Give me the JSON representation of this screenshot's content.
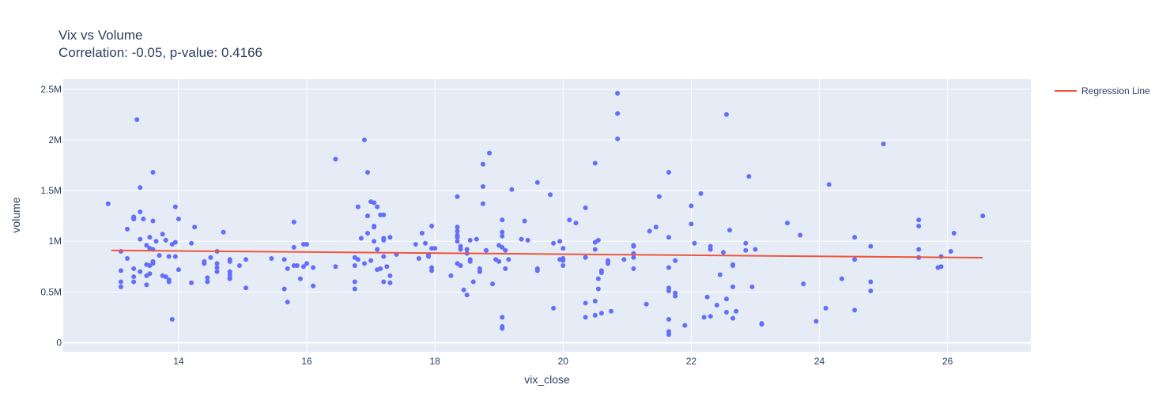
{
  "chart_data": {
    "type": "scatter",
    "title": "Vix vs Volume",
    "subtitle": "Correlation: -0.05, p-value: 0.4166",
    "xlabel": "vix_close",
    "ylabel": "volume",
    "xlim": [
      12.2,
      27.3
    ],
    "ylim": [
      -90000,
      2600000
    ],
    "x_ticks": [
      14,
      16,
      18,
      20,
      22,
      24,
      26
    ],
    "x_tick_labels": [
      "14",
      "16",
      "18",
      "20",
      "22",
      "24",
      "26"
    ],
    "y_ticks": [
      0,
      500000,
      1000000,
      1500000,
      2000000,
      2500000
    ],
    "y_tick_labels": [
      "0",
      "0.5M",
      "1M",
      "1.5M",
      "2M",
      "2.5M"
    ],
    "grid": true,
    "legend_position": "top-right",
    "marker_color": "#636efa",
    "line_color": "#ef553b",
    "regression_line": {
      "name": "Regression Line",
      "x": [
        12.95,
        26.55
      ],
      "y": [
        910000,
        838000
      ]
    },
    "points": [
      [
        12.9,
        1370000
      ],
      [
        13.1,
        900000
      ],
      [
        13.1,
        710000
      ],
      [
        13.1,
        600000
      ],
      [
        13.1,
        550000
      ],
      [
        13.2,
        1120000
      ],
      [
        13.2,
        830000
      ],
      [
        13.3,
        1220000
      ],
      [
        13.3,
        1230000
      ],
      [
        13.3,
        1240000
      ],
      [
        13.3,
        1220000
      ],
      [
        13.3,
        730000
      ],
      [
        13.3,
        650000
      ],
      [
        13.3,
        600000
      ],
      [
        13.35,
        2200000
      ],
      [
        13.4,
        1530000
      ],
      [
        13.4,
        1290000
      ],
      [
        13.4,
        1020000
      ],
      [
        13.4,
        700000
      ],
      [
        13.45,
        1220000
      ],
      [
        13.5,
        960000
      ],
      [
        13.5,
        770000
      ],
      [
        13.5,
        660000
      ],
      [
        13.5,
        570000
      ],
      [
        13.55,
        1040000
      ],
      [
        13.55,
        930000
      ],
      [
        13.55,
        760000
      ],
      [
        13.55,
        680000
      ],
      [
        13.6,
        1680000
      ],
      [
        13.6,
        1200000
      ],
      [
        13.6,
        920000
      ],
      [
        13.6,
        800000
      ],
      [
        13.6,
        780000
      ],
      [
        13.65,
        1000000
      ],
      [
        13.7,
        860000
      ],
      [
        13.75,
        1070000
      ],
      [
        13.75,
        660000
      ],
      [
        13.8,
        650000
      ],
      [
        13.8,
        1010000
      ],
      [
        13.85,
        850000
      ],
      [
        13.85,
        620000
      ],
      [
        13.85,
        600000
      ],
      [
        13.9,
        970000
      ],
      [
        13.9,
        230000
      ],
      [
        13.95,
        1340000
      ],
      [
        13.95,
        990000
      ],
      [
        13.95,
        850000
      ],
      [
        14.0,
        1220000
      ],
      [
        14.0,
        720000
      ],
      [
        14.2,
        980000
      ],
      [
        14.2,
        590000
      ],
      [
        14.25,
        1140000
      ],
      [
        14.4,
        800000
      ],
      [
        14.4,
        780000
      ],
      [
        14.45,
        640000
      ],
      [
        14.45,
        600000
      ],
      [
        14.5,
        840000
      ],
      [
        14.6,
        900000
      ],
      [
        14.6,
        780000
      ],
      [
        14.6,
        740000
      ],
      [
        14.6,
        700000
      ],
      [
        14.7,
        1090000
      ],
      [
        14.8,
        820000
      ],
      [
        14.8,
        800000
      ],
      [
        14.8,
        700000
      ],
      [
        14.8,
        670000
      ],
      [
        14.8,
        640000
      ],
      [
        14.8,
        630000
      ],
      [
        14.95,
        760000
      ],
      [
        15.05,
        540000
      ],
      [
        15.05,
        820000
      ],
      [
        15.45,
        830000
      ],
      [
        15.65,
        820000
      ],
      [
        15.65,
        530000
      ],
      [
        15.7,
        730000
      ],
      [
        15.7,
        400000
      ],
      [
        15.8,
        1190000
      ],
      [
        15.8,
        940000
      ],
      [
        15.8,
        760000
      ],
      [
        15.85,
        760000
      ],
      [
        15.9,
        630000
      ],
      [
        15.95,
        970000
      ],
      [
        15.95,
        750000
      ],
      [
        16.0,
        970000
      ],
      [
        16.0,
        780000
      ],
      [
        16.1,
        740000
      ],
      [
        16.1,
        560000
      ],
      [
        16.45,
        1810000
      ],
      [
        16.45,
        750000
      ],
      [
        16.75,
        840000
      ],
      [
        16.75,
        760000
      ],
      [
        16.75,
        600000
      ],
      [
        16.75,
        530000
      ],
      [
        16.8,
        1340000
      ],
      [
        16.8,
        820000
      ],
      [
        16.85,
        1030000
      ],
      [
        16.9,
        2000000
      ],
      [
        16.9,
        780000
      ],
      [
        16.95,
        1250000
      ],
      [
        16.95,
        1080000
      ],
      [
        16.95,
        1680000
      ],
      [
        17.0,
        1390000
      ],
      [
        17.0,
        810000
      ],
      [
        17.05,
        1380000
      ],
      [
        17.05,
        1150000
      ],
      [
        17.05,
        1140000
      ],
      [
        17.05,
        1000000
      ],
      [
        17.1,
        1340000
      ],
      [
        17.1,
        920000
      ],
      [
        17.1,
        720000
      ],
      [
        17.15,
        1260000
      ],
      [
        17.15,
        730000
      ],
      [
        17.2,
        1260000
      ],
      [
        17.2,
        1030000
      ],
      [
        17.2,
        1010000
      ],
      [
        17.2,
        850000
      ],
      [
        17.2,
        600000
      ],
      [
        17.25,
        750000
      ],
      [
        17.3,
        1040000
      ],
      [
        17.3,
        660000
      ],
      [
        17.3,
        590000
      ],
      [
        17.4,
        870000
      ],
      [
        17.7,
        970000
      ],
      [
        17.75,
        830000
      ],
      [
        17.8,
        1080000
      ],
      [
        17.85,
        980000
      ],
      [
        17.9,
        870000
      ],
      [
        17.9,
        850000
      ],
      [
        17.95,
        1150000
      ],
      [
        17.95,
        930000
      ],
      [
        17.95,
        740000
      ],
      [
        17.95,
        710000
      ],
      [
        18.0,
        930000
      ],
      [
        18.25,
        660000
      ],
      [
        18.35,
        1440000
      ],
      [
        18.35,
        1140000
      ],
      [
        18.35,
        1100000
      ],
      [
        18.35,
        1060000
      ],
      [
        18.35,
        1040000
      ],
      [
        18.35,
        1000000
      ],
      [
        18.35,
        780000
      ],
      [
        18.4,
        950000
      ],
      [
        18.4,
        920000
      ],
      [
        18.4,
        760000
      ],
      [
        18.45,
        520000
      ],
      [
        18.5,
        470000
      ],
      [
        18.5,
        920000
      ],
      [
        18.5,
        880000
      ],
      [
        18.55,
        1010000
      ],
      [
        18.55,
        820000
      ],
      [
        18.55,
        800000
      ],
      [
        18.6,
        600000
      ],
      [
        18.65,
        1020000
      ],
      [
        18.7,
        730000
      ],
      [
        18.7,
        700000
      ],
      [
        18.75,
        1760000
      ],
      [
        18.75,
        1540000
      ],
      [
        18.75,
        1370000
      ],
      [
        18.8,
        910000
      ],
      [
        18.85,
        1870000
      ],
      [
        18.9,
        580000
      ],
      [
        18.95,
        820000
      ],
      [
        19.0,
        960000
      ],
      [
        19.0,
        800000
      ],
      [
        19.05,
        1210000
      ],
      [
        19.05,
        1090000
      ],
      [
        19.05,
        1050000
      ],
      [
        19.05,
        940000
      ],
      [
        19.05,
        250000
      ],
      [
        19.05,
        160000
      ],
      [
        19.05,
        140000
      ],
      [
        19.1,
        910000
      ],
      [
        19.1,
        730000
      ],
      [
        19.15,
        820000
      ],
      [
        19.2,
        1510000
      ],
      [
        19.35,
        1020000
      ],
      [
        19.4,
        1200000
      ],
      [
        19.45,
        1010000
      ],
      [
        19.6,
        1580000
      ],
      [
        19.6,
        730000
      ],
      [
        19.6,
        710000
      ],
      [
        19.8,
        1460000
      ],
      [
        19.85,
        980000
      ],
      [
        19.85,
        340000
      ],
      [
        19.95,
        1000000
      ],
      [
        19.95,
        820000
      ],
      [
        20.0,
        930000
      ],
      [
        20.0,
        830000
      ],
      [
        20.0,
        810000
      ],
      [
        20.0,
        760000
      ],
      [
        20.1,
        1210000
      ],
      [
        20.2,
        1180000
      ],
      [
        20.35,
        1330000
      ],
      [
        20.35,
        840000
      ],
      [
        20.35,
        390000
      ],
      [
        20.35,
        250000
      ],
      [
        20.5,
        1770000
      ],
      [
        20.5,
        990000
      ],
      [
        20.5,
        920000
      ],
      [
        20.5,
        410000
      ],
      [
        20.5,
        270000
      ],
      [
        20.55,
        1010000
      ],
      [
        20.55,
        630000
      ],
      [
        20.55,
        530000
      ],
      [
        20.6,
        710000
      ],
      [
        20.6,
        690000
      ],
      [
        20.6,
        290000
      ],
      [
        20.7,
        810000
      ],
      [
        20.7,
        780000
      ],
      [
        20.75,
        310000
      ],
      [
        20.85,
        2460000
      ],
      [
        20.85,
        2260000
      ],
      [
        20.85,
        2010000
      ],
      [
        20.95,
        820000
      ],
      [
        21.1,
        730000
      ],
      [
        21.1,
        960000
      ],
      [
        21.1,
        950000
      ],
      [
        21.1,
        880000
      ],
      [
        21.1,
        840000
      ],
      [
        21.3,
        380000
      ],
      [
        21.35,
        1100000
      ],
      [
        21.45,
        1140000
      ],
      [
        21.5,
        1440000
      ],
      [
        21.65,
        1680000
      ],
      [
        21.65,
        1040000
      ],
      [
        21.65,
        740000
      ],
      [
        21.65,
        540000
      ],
      [
        21.65,
        510000
      ],
      [
        21.65,
        230000
      ],
      [
        21.65,
        110000
      ],
      [
        21.65,
        80000
      ],
      [
        21.75,
        810000
      ],
      [
        21.75,
        490000
      ],
      [
        21.75,
        460000
      ],
      [
        21.9,
        170000
      ],
      [
        22.0,
        1350000
      ],
      [
        22.0,
        1170000
      ],
      [
        22.05,
        980000
      ],
      [
        22.15,
        1470000
      ],
      [
        22.2,
        250000
      ],
      [
        22.25,
        450000
      ],
      [
        22.3,
        920000
      ],
      [
        22.3,
        950000
      ],
      [
        22.3,
        260000
      ],
      [
        22.4,
        370000
      ],
      [
        22.45,
        670000
      ],
      [
        22.5,
        890000
      ],
      [
        22.55,
        2250000
      ],
      [
        22.55,
        430000
      ],
      [
        22.55,
        300000
      ],
      [
        22.6,
        1110000
      ],
      [
        22.65,
        770000
      ],
      [
        22.65,
        760000
      ],
      [
        22.65,
        550000
      ],
      [
        22.65,
        240000
      ],
      [
        22.7,
        310000
      ],
      [
        22.85,
        980000
      ],
      [
        22.85,
        910000
      ],
      [
        22.9,
        1640000
      ],
      [
        22.95,
        550000
      ],
      [
        23.0,
        920000
      ],
      [
        23.1,
        190000
      ],
      [
        23.1,
        180000
      ],
      [
        23.5,
        1180000
      ],
      [
        23.7,
        1060000
      ],
      [
        23.75,
        580000
      ],
      [
        23.95,
        210000
      ],
      [
        24.1,
        340000
      ],
      [
        24.15,
        1560000
      ],
      [
        24.35,
        630000
      ],
      [
        24.55,
        1040000
      ],
      [
        24.55,
        820000
      ],
      [
        24.55,
        320000
      ],
      [
        24.8,
        950000
      ],
      [
        24.8,
        600000
      ],
      [
        24.8,
        510000
      ],
      [
        25.0,
        1960000
      ],
      [
        25.55,
        1210000
      ],
      [
        25.55,
        1150000
      ],
      [
        25.55,
        920000
      ],
      [
        25.55,
        840000
      ],
      [
        25.85,
        740000
      ],
      [
        25.9,
        750000
      ],
      [
        25.9,
        850000
      ],
      [
        26.05,
        900000
      ],
      [
        26.1,
        1080000
      ],
      [
        26.55,
        1250000
      ]
    ]
  }
}
